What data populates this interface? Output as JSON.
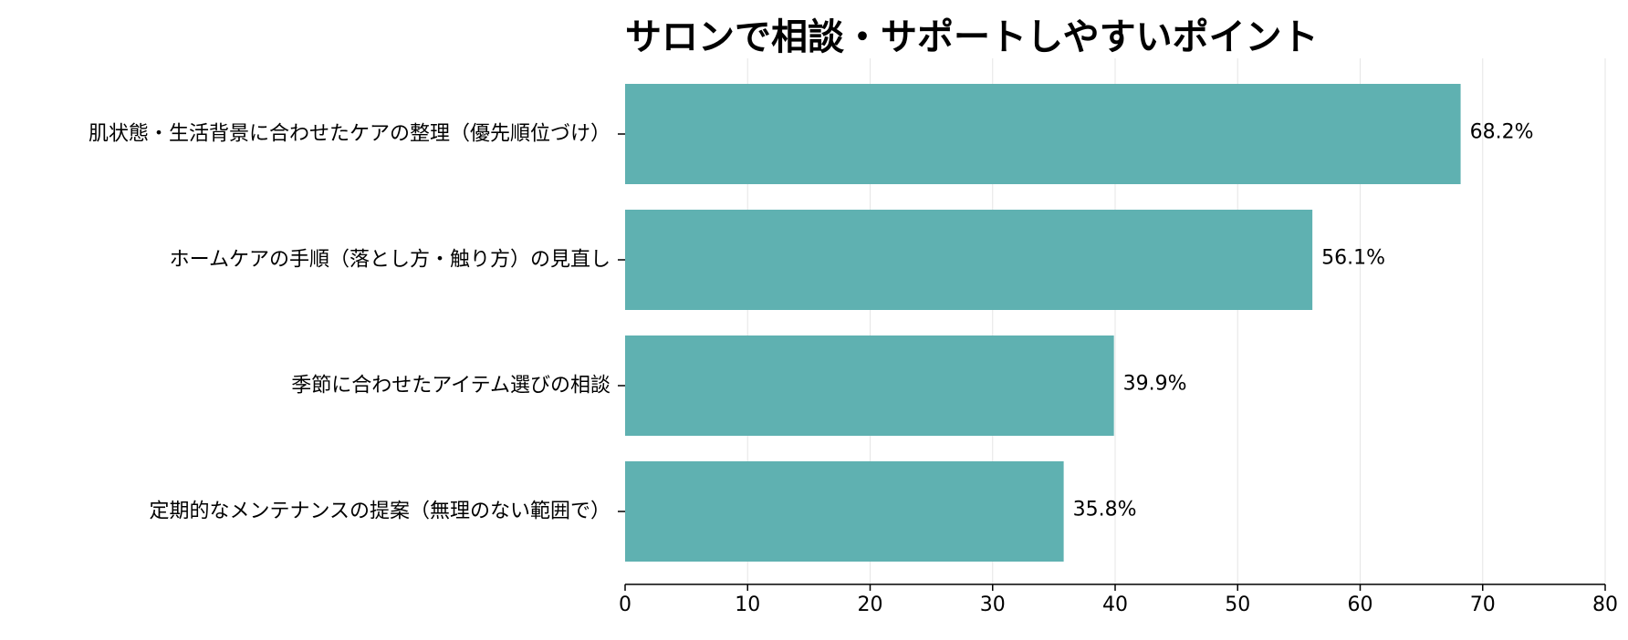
{
  "chart_data": {
    "type": "bar",
    "orientation": "horizontal",
    "title": "サロンで相談・サポートしやすいポイント",
    "categories": [
      "肌状態・生活背景に合わせたケアの整理（優先順位づけ）",
      "ホームケアの手順（落とし方・触り方）の見直し",
      "季節に合わせたアイテム選びの相談",
      "定期的なメンテナンスの提案（無理のない範囲で）"
    ],
    "values": [
      68.2,
      56.1,
      39.9,
      35.8
    ],
    "value_labels": [
      "68.2%",
      "56.1%",
      "39.9%",
      "35.8%"
    ],
    "xlim": [
      0,
      80
    ],
    "xticks": [
      0,
      10,
      20,
      30,
      40,
      50,
      60,
      70,
      80
    ],
    "xlabel": "",
    "ylabel": "",
    "grid": "vertical",
    "bar_color": "#5fb1b1"
  }
}
